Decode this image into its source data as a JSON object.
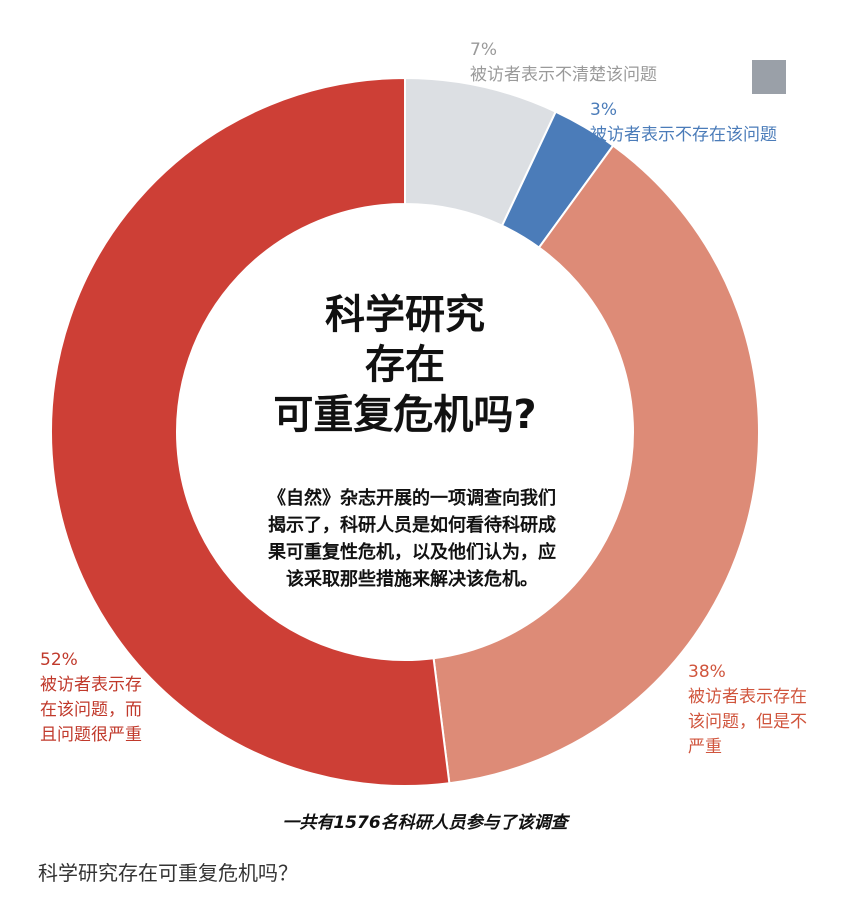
{
  "chart_data": {
    "type": "pie",
    "categories": [
      "被访者表示不清楚该问题",
      "被访者表示不存在该问题",
      "被访者表示存在该问题，但是不严重",
      "被访者表示存在该问题，而且问题很严重"
    ],
    "values": [
      7,
      3,
      38,
      52
    ],
    "value_labels": [
      "7%",
      "3%",
      "38%",
      "52%"
    ],
    "colors": [
      "#dcdfe3",
      "#4b7cb9",
      "#dd8b77",
      "#cd3f36"
    ],
    "donut": true,
    "center_title": [
      "科学研究",
      "存在",
      "可重复危机吗?"
    ],
    "center_text": "《自然》杂志开展的一项调查向我们揭示了，科研人员是如何看待科研成果可重复性危机，以及他们认为，应该采取那些措施来解决该危机。",
    "note": "一共有1576名科研人员参与了该调查"
  },
  "caption": "科学研究存在可重复危机吗？"
}
